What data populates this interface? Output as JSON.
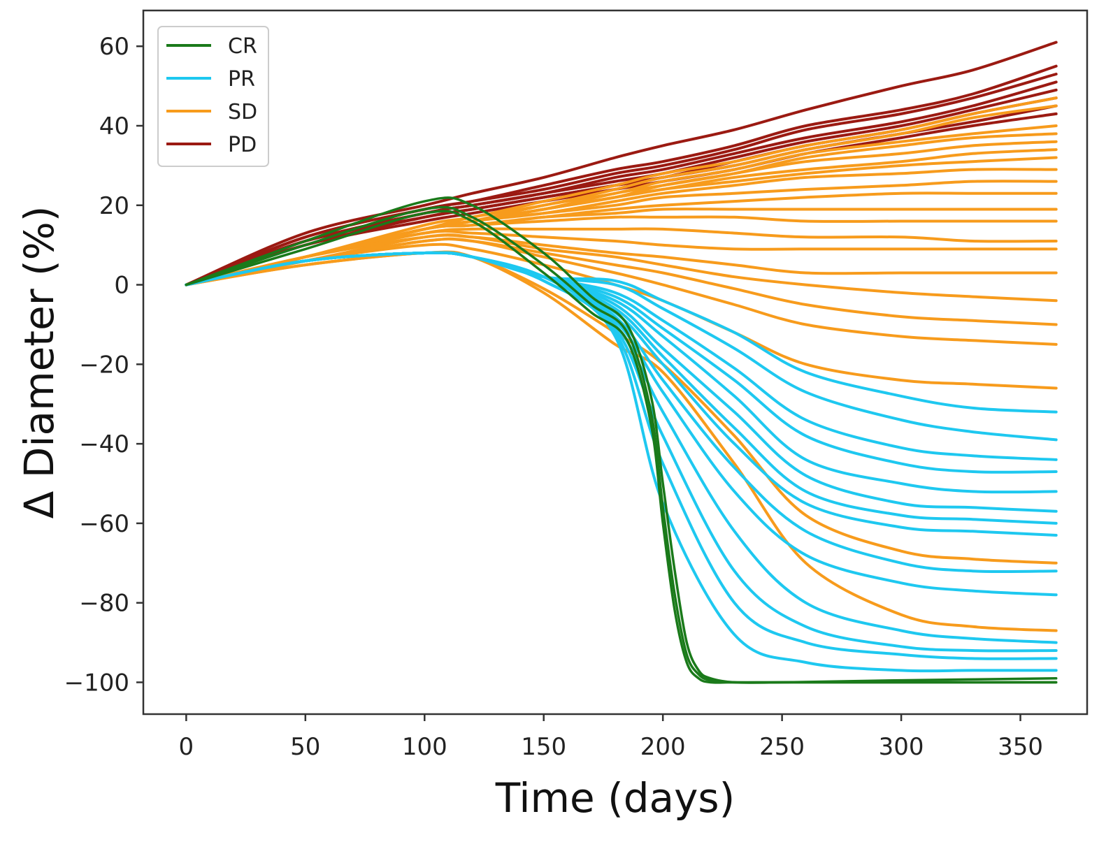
{
  "chart_data": {
    "type": "line",
    "title": "",
    "xlabel": "Time (days)",
    "ylabel": "Δ Diameter (%)",
    "xlim": [
      -18,
      378
    ],
    "ylim": [
      -108,
      69
    ],
    "xticks": [
      0,
      50,
      100,
      150,
      200,
      250,
      300,
      350
    ],
    "yticks": [
      60,
      40,
      20,
      0,
      -20,
      -40,
      -60,
      -80,
      -100
    ],
    "xtick_labels": [
      "0",
      "50",
      "100",
      "150",
      "200",
      "250",
      "300",
      "350"
    ],
    "ytick_labels": [
      "60",
      "40",
      "20",
      "0",
      "−20",
      "−40",
      "−60",
      "−80",
      "−100"
    ],
    "grid": false,
    "legend": {
      "position": "top-left",
      "entries": [
        {
          "label": "CR",
          "color": "#1a7a1a"
        },
        {
          "label": "PR",
          "color": "#1ec8f0"
        },
        {
          "label": "SD",
          "color": "#f79b1c"
        },
        {
          "label": "PD",
          "color": "#9b1a12"
        }
      ]
    },
    "draw_order": [
      "PD",
      "SD",
      "PR",
      "CR"
    ],
    "series": [
      {
        "name": "CR",
        "color": "#1a7a1a",
        "x": [
          0,
          50,
          100,
          120,
          150,
          170,
          185,
          195,
          200,
          205,
          210,
          215,
          220,
          230,
          250,
          300,
          365
        ],
        "curves": [
          [
            0,
            11,
            21,
            20,
            8,
            -3,
            -10,
            -28,
            -50,
            -72,
            -90,
            -97,
            -99,
            -100,
            -100,
            -99.5,
            -99
          ],
          [
            0,
            10,
            19,
            17,
            5,
            -5,
            -12,
            -32,
            -56,
            -78,
            -93,
            -98,
            -99.5,
            -100,
            -100,
            -100,
            -100
          ],
          [
            0,
            9,
            18,
            16,
            3,
            -7,
            -14,
            -35,
            -60,
            -82,
            -95,
            -99,
            -100,
            -100,
            -100,
            -100,
            -100
          ]
        ]
      },
      {
        "name": "PR",
        "color": "#1ec8f0",
        "x": [
          0,
          50,
          100,
          120,
          150,
          180,
          200,
          230,
          260,
          300,
          330,
          365
        ],
        "curves": [
          [
            0,
            6,
            8,
            7,
            1,
            -13,
            -55,
            -88,
            -95,
            -97,
            -97,
            -97
          ],
          [
            0,
            6,
            8,
            7,
            1,
            -12,
            -45,
            -80,
            -90,
            -93,
            -94,
            -94
          ],
          [
            0,
            6,
            8,
            7,
            1,
            -11,
            -38,
            -72,
            -86,
            -91,
            -92,
            -92
          ],
          [
            0,
            6,
            8,
            7,
            2,
            -10,
            -32,
            -62,
            -80,
            -87,
            -89,
            -90
          ],
          [
            0,
            6,
            8,
            7,
            2,
            -9,
            -27,
            -52,
            -68,
            -75,
            -77,
            -78
          ],
          [
            0,
            6,
            8,
            7,
            2,
            -8,
            -24,
            -46,
            -62,
            -70,
            -72,
            -72
          ],
          [
            0,
            6,
            8,
            7,
            2,
            -7,
            -20,
            -40,
            -55,
            -61,
            -62,
            -63
          ],
          [
            0,
            6,
            8,
            7,
            2,
            -6,
            -18,
            -36,
            -52,
            -58,
            -59,
            -60
          ],
          [
            0,
            6,
            8,
            7,
            2,
            -5,
            -16,
            -32,
            -48,
            -55,
            -56,
            -57
          ],
          [
            0,
            6,
            8,
            7,
            2,
            -4,
            -13,
            -28,
            -44,
            -50,
            -52,
            -52
          ],
          [
            0,
            6,
            8,
            7,
            2,
            -3,
            -11,
            -24,
            -38,
            -45,
            -47,
            -47
          ],
          [
            0,
            6,
            8,
            7,
            2,
            -2,
            -9,
            -21,
            -34,
            -41,
            -43,
            -44
          ],
          [
            0,
            6,
            8,
            7,
            2,
            0,
            -6,
            -16,
            -27,
            -34,
            -37,
            -39
          ],
          [
            0,
            6,
            8,
            7,
            2,
            1,
            -4,
            -12,
            -22,
            -28,
            -31,
            -32
          ]
        ]
      },
      {
        "name": "SD",
        "color": "#f79b1c",
        "x": [
          0,
          50,
          100,
          120,
          150,
          180,
          200,
          230,
          260,
          300,
          330,
          365
        ],
        "curves": [
          [
            0,
            5,
            8,
            7,
            -2,
            -15,
            -22,
            -45,
            -70,
            -83,
            -86,
            -87
          ],
          [
            0,
            5,
            8,
            7,
            -1,
            -12,
            -20,
            -38,
            -58,
            -67,
            -69,
            -70
          ],
          [
            0,
            6,
            10,
            9,
            5,
            0,
            -4,
            -12,
            -20,
            -24,
            -25,
            -26
          ],
          [
            0,
            6,
            11,
            11,
            7,
            3,
            0,
            -5,
            -10,
            -13,
            -14,
            -15
          ],
          [
            0,
            6,
            11,
            11,
            8,
            5,
            3,
            -1,
            -5,
            -8,
            -9,
            -10
          ],
          [
            0,
            6,
            12,
            12,
            9,
            7,
            5,
            2,
            0,
            -2,
            -3,
            -4
          ],
          [
            0,
            7,
            12,
            12,
            10,
            8,
            7,
            5,
            3,
            3,
            3,
            3
          ],
          [
            0,
            7,
            13,
            13,
            12,
            11,
            10,
            9,
            9,
            9,
            9,
            9
          ],
          [
            0,
            7,
            13,
            14,
            14,
            14,
            14,
            13,
            12,
            12,
            11,
            11
          ],
          [
            0,
            7,
            14,
            15,
            16,
            17,
            17,
            17,
            16,
            16,
            16,
            16
          ],
          [
            0,
            7,
            14,
            15,
            17,
            18,
            19,
            19,
            19,
            19,
            19,
            19
          ],
          [
            0,
            7,
            14,
            15,
            17,
            19,
            20,
            21,
            22,
            23,
            23,
            23
          ],
          [
            0,
            7,
            14,
            16,
            18,
            20,
            22,
            23,
            24,
            25,
            26,
            26
          ],
          [
            0,
            7,
            14,
            16,
            18,
            21,
            23,
            25,
            27,
            28,
            29,
            29
          ],
          [
            0,
            7,
            14,
            16,
            19,
            22,
            24,
            26,
            28,
            30,
            31,
            32
          ],
          [
            0,
            7,
            14,
            16,
            19,
            22,
            24,
            27,
            29,
            31,
            33,
            34
          ],
          [
            0,
            7,
            14,
            16,
            19,
            22,
            25,
            28,
            31,
            33,
            35,
            36
          ],
          [
            0,
            7,
            14,
            16,
            19,
            23,
            25,
            28,
            32,
            35,
            37,
            38
          ],
          [
            0,
            7,
            14,
            16,
            20,
            23,
            26,
            29,
            33,
            36,
            38,
            40
          ],
          [
            0,
            7,
            14,
            17,
            20,
            24,
            27,
            30,
            34,
            38,
            42,
            45
          ],
          [
            0,
            7,
            15,
            17,
            21,
            25,
            28,
            31,
            35,
            39,
            43,
            47
          ]
        ]
      },
      {
        "name": "PD",
        "color": "#9b1a12",
        "x": [
          0,
          50,
          100,
          120,
          150,
          180,
          200,
          230,
          260,
          300,
          330,
          365
        ],
        "curves": [
          [
            0,
            13,
            20,
            23,
            27,
            32,
            35,
            39,
            44,
            50,
            54,
            61
          ],
          [
            0,
            12,
            19,
            21,
            25,
            29,
            31,
            35,
            40,
            44,
            48,
            55
          ],
          [
            0,
            12,
            19,
            21,
            24,
            28,
            30,
            34,
            39,
            43,
            47,
            53
          ],
          [
            0,
            11,
            18,
            20,
            23,
            27,
            29,
            33,
            37,
            41,
            45,
            51
          ],
          [
            0,
            11,
            18,
            20,
            23,
            26,
            28,
            32,
            36,
            40,
            44,
            49
          ],
          [
            0,
            11,
            17,
            19,
            22,
            25,
            27,
            31,
            35,
            39,
            43,
            47
          ],
          [
            0,
            10,
            17,
            19,
            22,
            25,
            27,
            30,
            34,
            38,
            41,
            45
          ],
          [
            0,
            10,
            16,
            18,
            21,
            24,
            26,
            29,
            33,
            37,
            40,
            43
          ]
        ]
      }
    ]
  }
}
